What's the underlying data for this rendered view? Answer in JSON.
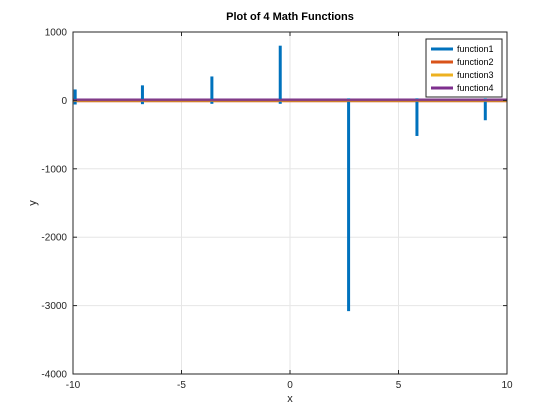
{
  "chart_data": {
    "type": "line",
    "title": "Plot of 4 Math Functions",
    "xlabel": "x",
    "ylabel": "y",
    "xlim": [
      -10,
      10
    ],
    "ylim": [
      -4000,
      1000
    ],
    "xticks": [
      -10,
      -5,
      0,
      5,
      10
    ],
    "yticks": [
      1000,
      0,
      -1000,
      -2000,
      -3000,
      -4000
    ],
    "grid": true,
    "legend_position": "top-right",
    "series": [
      {
        "name": "function1",
        "color": "#0072BD",
        "spikes": [
          {
            "x": -9.9,
            "top": 160,
            "bottom": -60
          },
          {
            "x": -6.8,
            "top": 220,
            "bottom": -55
          },
          {
            "x": -3.6,
            "top": 350,
            "bottom": -50
          },
          {
            "x": -0.45,
            "top": 800,
            "bottom": -50
          },
          {
            "x": 2.7,
            "top": 30,
            "bottom": -3080
          },
          {
            "x": 5.85,
            "top": 30,
            "bottom": -520
          },
          {
            "x": 9.0,
            "top": 30,
            "bottom": -290
          }
        ]
      },
      {
        "name": "function2",
        "color": "#D95319",
        "values_flat": -5
      },
      {
        "name": "function3",
        "color": "#EDB120",
        "values_flat": 0
      },
      {
        "name": "function4",
        "color": "#7E2F8E",
        "values_flat": 5
      }
    ]
  }
}
